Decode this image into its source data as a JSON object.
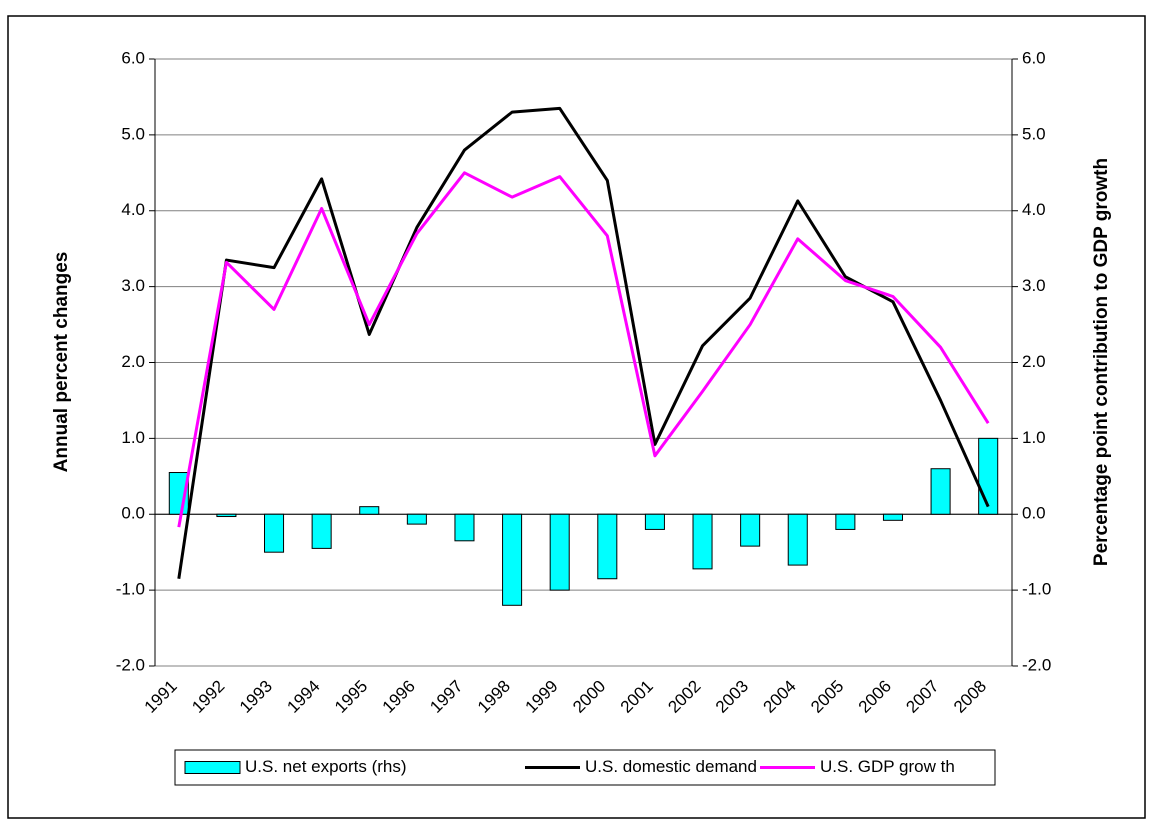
{
  "chart_data": {
    "type": "combo",
    "ylabel": "Annual percent changes",
    "y2label": "Percentage point contribution to GDP growth",
    "categories": [
      "1991",
      "1992",
      "1993",
      "1994",
      "1995",
      "1996",
      "1997",
      "1998",
      "1999",
      "2000",
      "2001",
      "2002",
      "2003",
      "2004",
      "2005",
      "2006",
      "2007",
      "2008"
    ],
    "series": [
      {
        "name": "U.S. net exports (rhs)",
        "type": "bar",
        "axis": "y2",
        "color": "#00ffff",
        "values": [
          0.55,
          -0.03,
          -0.5,
          -0.45,
          0.1,
          -0.13,
          -0.35,
          -1.2,
          -1.0,
          -0.85,
          -0.2,
          -0.72,
          -0.42,
          -0.67,
          -0.2,
          -0.08,
          0.6,
          1.0
        ]
      },
      {
        "name": "U.S. domestic demand",
        "type": "line",
        "color": "#000000",
        "values": [
          -0.85,
          3.35,
          3.25,
          4.42,
          2.37,
          3.78,
          4.8,
          5.3,
          5.35,
          4.4,
          0.92,
          2.22,
          2.85,
          4.13,
          3.13,
          2.8,
          1.5,
          0.1
        ]
      },
      {
        "name": "U.S. GDP grow th",
        "type": "line",
        "color": "#ff00ff",
        "values": [
          -0.17,
          3.32,
          2.7,
          4.03,
          2.5,
          3.7,
          4.5,
          4.18,
          4.45,
          3.67,
          0.77,
          1.62,
          2.5,
          3.63,
          3.08,
          2.87,
          2.2,
          1.2
        ]
      }
    ],
    "ylim": [
      -2,
      6
    ],
    "yticks": [
      {
        "value": -2,
        "label": "-2.0"
      },
      {
        "value": -1,
        "label": "-1.0"
      },
      {
        "value": 0,
        "label": "0.0"
      },
      {
        "value": 1,
        "label": "1.0"
      },
      {
        "value": 2,
        "label": "2.0"
      },
      {
        "value": 3,
        "label": "3.0"
      },
      {
        "value": 4,
        "label": "4.0"
      },
      {
        "value": 5,
        "label": "5.0"
      },
      {
        "value": 6,
        "label": "6.0"
      }
    ],
    "y2lim": [
      -2,
      6
    ],
    "y2ticks": [
      {
        "value": -2,
        "label": "-2.0"
      },
      {
        "value": -1,
        "label": "-1.0"
      },
      {
        "value": 0,
        "label": "0.0"
      },
      {
        "value": 1,
        "label": "1.0"
      },
      {
        "value": 2,
        "label": "2.0"
      },
      {
        "value": 3,
        "label": "3.0"
      },
      {
        "value": 4,
        "label": "4.0"
      },
      {
        "value": 5,
        "label": "5.0"
      },
      {
        "value": 6,
        "label": "6.0"
      }
    ],
    "grid": true,
    "legend": "bottom"
  }
}
